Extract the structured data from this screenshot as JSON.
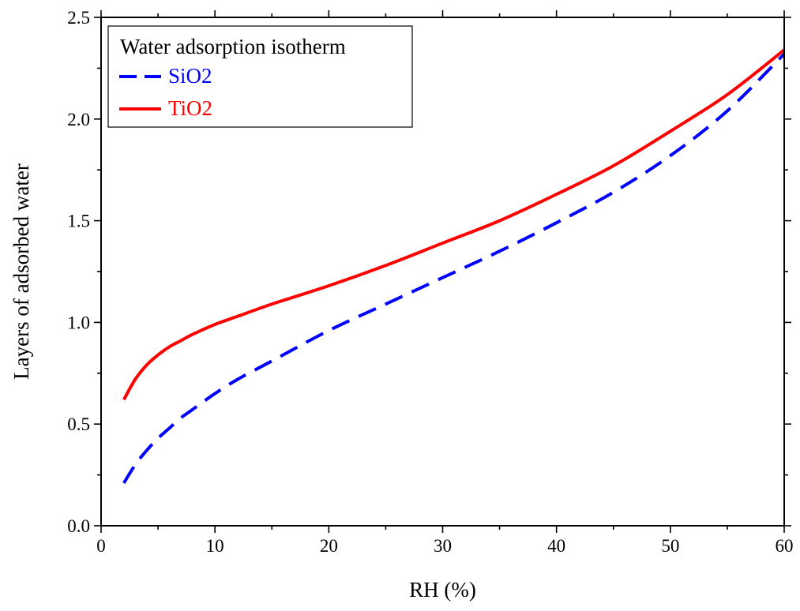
{
  "chart_data": {
    "type": "line",
    "title": "",
    "xlabel": "RH (%)",
    "ylabel": "Layers of adsorbed water",
    "xlim": [
      0,
      60
    ],
    "ylim": [
      0.0,
      2.5
    ],
    "xticks": [
      0,
      10,
      20,
      30,
      40,
      50,
      60
    ],
    "xtick_labels": [
      "0",
      "10",
      "20",
      "30",
      "40",
      "50",
      "60"
    ],
    "yticks": [
      0.0,
      0.5,
      1.0,
      1.5,
      2.0,
      2.5
    ],
    "ytick_labels": [
      "0.0",
      "0.5",
      "1.0",
      "1.5",
      "2.0",
      "2.5"
    ],
    "grid": false,
    "legend": {
      "title": "Water adsorption isotherm",
      "position": "top-left"
    },
    "series": [
      {
        "name": "SiO2",
        "color": "#0000ff",
        "style": "dashed",
        "x": [
          2,
          3,
          4,
          5,
          6,
          7,
          8,
          10,
          12,
          15,
          20,
          25,
          30,
          35,
          40,
          45,
          50,
          55,
          60
        ],
        "y": [
          0.21,
          0.3,
          0.37,
          0.43,
          0.48,
          0.53,
          0.57,
          0.65,
          0.72,
          0.81,
          0.96,
          1.09,
          1.22,
          1.35,
          1.49,
          1.64,
          1.82,
          2.04,
          2.32
        ]
      },
      {
        "name": "TiO2",
        "color": "#ff0000",
        "style": "solid",
        "x": [
          2,
          3,
          4,
          5,
          6,
          7,
          8,
          10,
          12,
          15,
          20,
          25,
          30,
          35,
          40,
          45,
          50,
          55,
          60
        ],
        "y": [
          0.62,
          0.72,
          0.79,
          0.84,
          0.88,
          0.91,
          0.94,
          0.99,
          1.03,
          1.09,
          1.18,
          1.28,
          1.39,
          1.5,
          1.63,
          1.77,
          1.94,
          2.12,
          2.34
        ]
      }
    ]
  }
}
